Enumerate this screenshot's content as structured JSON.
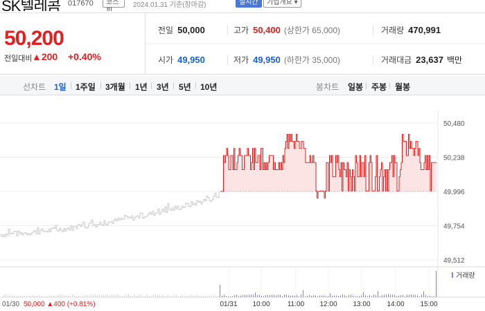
{
  "header": {
    "name": "SK텔레콤",
    "code": "017670",
    "market_badge": "코스피",
    "date_text": "2024.01.31 기준(장마감)",
    "realtime_badge": "실시간",
    "overview_badge": "기업개요 ▾"
  },
  "price": {
    "current": "50,200",
    "change_label": "전일대비",
    "change_amount": "▲200",
    "change_percent": "+0.40%"
  },
  "stats": {
    "prev_close_label": "전일",
    "prev_close": "50,000",
    "high_label": "고가",
    "high": "50,400",
    "upper_limit": "(상한가 65,000)",
    "volume_label": "거래량",
    "volume": "470,991",
    "open_label": "시가",
    "open": "49,950",
    "low_label": "저가",
    "low": "49,950",
    "lower_limit": "(하한가 35,000)",
    "value_label": "거래대금",
    "value": "23,637",
    "value_unit": "백만"
  },
  "tabs": {
    "line_label": "선차트",
    "periods": [
      "1일",
      "1주일",
      "3개월",
      "1년",
      "3년",
      "5년",
      "10년"
    ],
    "candle_label": "봉차트",
    "candles": [
      "일봉",
      "주봉",
      "월봉"
    ]
  },
  "chart_data": {
    "type": "line",
    "y_ticks": [
      "50,480",
      "50,238",
      "49,996",
      "49,754",
      "49,512"
    ],
    "ylim": [
      49512,
      50480
    ],
    "baseline": 49996,
    "x_ticks": [
      "01/31",
      "10:00",
      "11:00",
      "12:00",
      "13:00",
      "14:00",
      "15:00"
    ],
    "volume_label": "거래량",
    "prev_day_label": "01/30",
    "prev_day_close": "50,000",
    "prev_day_change": "▲400",
    "prev_day_pct": "(+0.81%)",
    "colors": {
      "today": "#e22020",
      "prev": "#c8c8c8",
      "fill": "#fde4e4",
      "volume": "#8a7fc8"
    }
  }
}
